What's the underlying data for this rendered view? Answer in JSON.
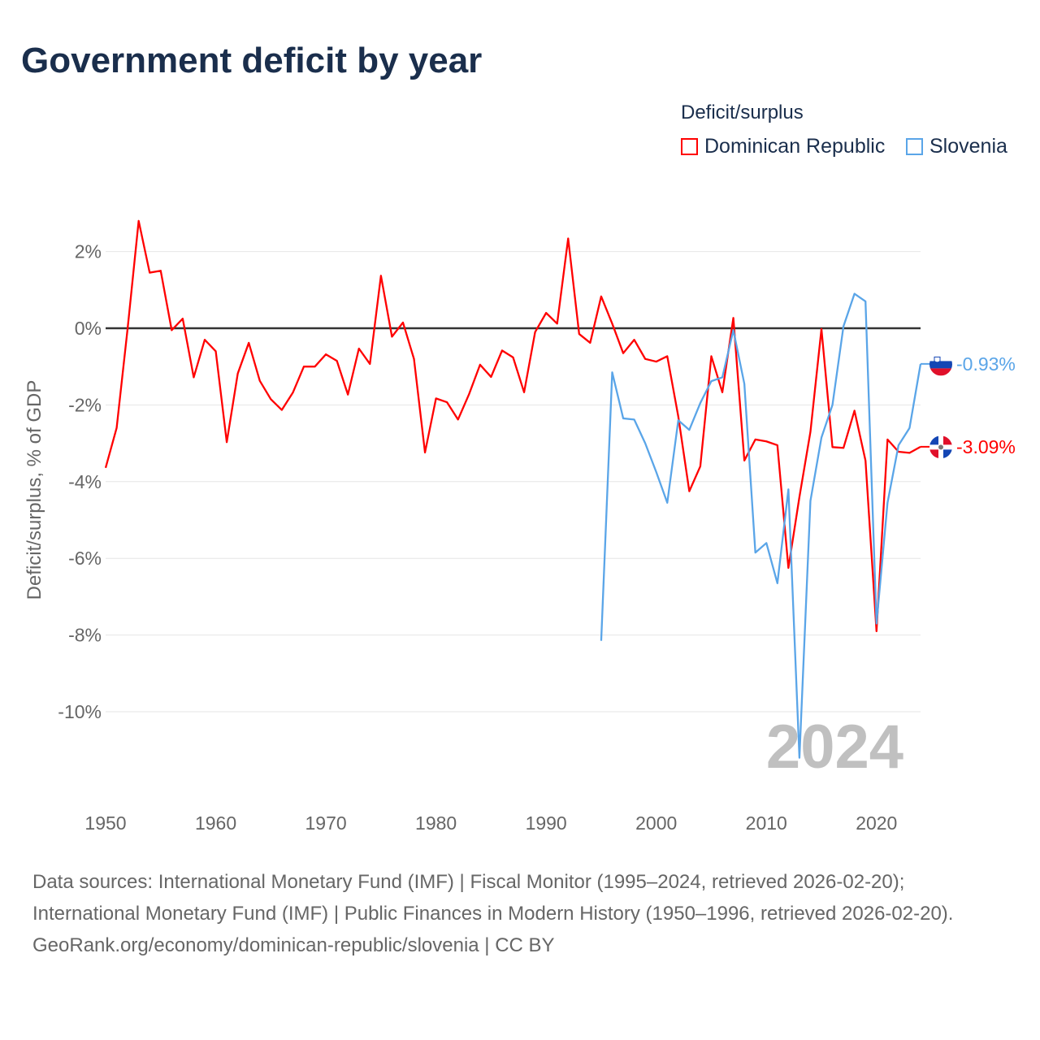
{
  "chart_data": {
    "type": "line",
    "title": "Government deficit by year",
    "ylabel": "Deficit/surplus, % of GDP",
    "xlabel": "",
    "xlim": [
      1950,
      2024
    ],
    "ylim": [
      -12.3,
      2.8
    ],
    "grid": true,
    "x_ticks": [
      1950,
      1960,
      1970,
      1980,
      1990,
      2000,
      2010,
      2020
    ],
    "x_tick_labels": [
      "1950",
      "1960",
      "1970",
      "1980",
      "1990",
      "2000",
      "2010",
      "2020"
    ],
    "y_ticks": [
      2,
      0,
      -2,
      -4,
      -6,
      -8,
      -10
    ],
    "y_tick_labels": [
      "2%",
      "0%",
      "-2%",
      "-4%",
      "-6%",
      "-8%",
      "-10%"
    ],
    "legend_title": "Deficit/surplus",
    "legend_position": "top-right",
    "year_watermark": "2024",
    "series": [
      {
        "name": "Dominican Republic",
        "color": "#ff0000",
        "end_label": "-3.09%",
        "flag": "dominican-republic",
        "start_year": 1950,
        "values": [
          -3.64,
          -2.6,
          0.0,
          2.8,
          1.45,
          1.5,
          -0.05,
          0.25,
          -1.28,
          -0.3,
          -0.6,
          -2.97,
          -1.18,
          -0.38,
          -1.37,
          -1.85,
          -2.13,
          -1.68,
          -1.0,
          -1.0,
          -0.68,
          -0.85,
          -1.73,
          -0.53,
          -0.93,
          1.37,
          -0.22,
          0.15,
          -0.8,
          -3.24,
          -1.83,
          -1.93,
          -2.38,
          -1.72,
          -0.95,
          -1.27,
          -0.58,
          -0.76,
          -1.67,
          -0.1,
          0.4,
          0.12,
          2.34,
          -0.15,
          -0.38,
          0.83,
          0.12,
          -0.65,
          -0.3,
          -0.8,
          -0.87,
          -0.73,
          -2.3,
          -4.25,
          -3.6,
          -0.73,
          -1.67,
          0.27,
          -3.45,
          -2.9,
          -2.95,
          -3.05,
          -6.25,
          -4.4,
          -2.7,
          -0.02,
          -3.1,
          -3.12,
          -2.15,
          -3.45,
          -7.9,
          -2.9,
          -3.22,
          -3.25,
          -3.09
        ]
      },
      {
        "name": "Slovenia",
        "color": "#5aa5e8",
        "end_label": "-0.93%",
        "flag": "slovenia",
        "start_year": 1995,
        "values": [
          -8.15,
          -1.15,
          -2.35,
          -2.38,
          -3.0,
          -3.75,
          -4.55,
          -2.4,
          -2.65,
          -1.95,
          -1.38,
          -1.28,
          -0.05,
          -1.45,
          -5.85,
          -5.6,
          -6.65,
          -4.2,
          -11.2,
          -4.5,
          -2.85,
          -2.0,
          0.05,
          0.9,
          0.7,
          -7.7,
          -4.55,
          -3.05,
          -2.6,
          -0.93
        ]
      }
    ]
  },
  "footer": {
    "sources": "Data sources: International Monetary Fund (IMF) | Fiscal Monitor (1995–2024, retrieved 2026-02-20); International Monetary Fund (IMF) | Public Finances in Modern History (1950–1996, retrieved 2026-02-20).",
    "credit": "GeoRank.org/economy/dominican-republic/slovenia | CC BY"
  }
}
